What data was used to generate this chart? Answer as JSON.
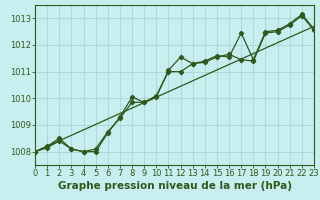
{
  "title": "Graphe pression niveau de la mer (hPa)",
  "bg_color": "#c8eef0",
  "grid_color": "#afd8da",
  "line_color": "#2d5a1b",
  "x_min": 0,
  "x_max": 23,
  "y_min": 1007.5,
  "y_max": 1013.5,
  "x_data": [
    0,
    1,
    2,
    3,
    4,
    5,
    6,
    7,
    8,
    9,
    10,
    11,
    12,
    13,
    14,
    15,
    16,
    17,
    18,
    19,
    20,
    21,
    22,
    23
  ],
  "values1": [
    1008.0,
    1008.2,
    1008.5,
    1008.1,
    1008.0,
    1008.0,
    1008.7,
    1009.3,
    1010.05,
    1009.85,
    1010.05,
    1011.05,
    1011.55,
    1011.3,
    1011.4,
    1011.6,
    1011.55,
    1012.45,
    1011.45,
    1012.5,
    1012.55,
    1012.8,
    1013.15,
    1012.6
  ],
  "values2": [
    1008.0,
    1008.15,
    1008.4,
    1008.1,
    1008.0,
    1008.1,
    1008.75,
    1009.25,
    1009.85,
    1009.85,
    1010.1,
    1011.0,
    1011.0,
    1011.3,
    1011.35,
    1011.55,
    1011.65,
    1011.45,
    1011.4,
    1012.45,
    1012.5,
    1012.75,
    1013.1,
    1012.55
  ],
  "trend_x": [
    0,
    23
  ],
  "trend_y": [
    1008.0,
    1012.7
  ],
  "title_fontsize": 7.5,
  "tick_fontsize": 6
}
